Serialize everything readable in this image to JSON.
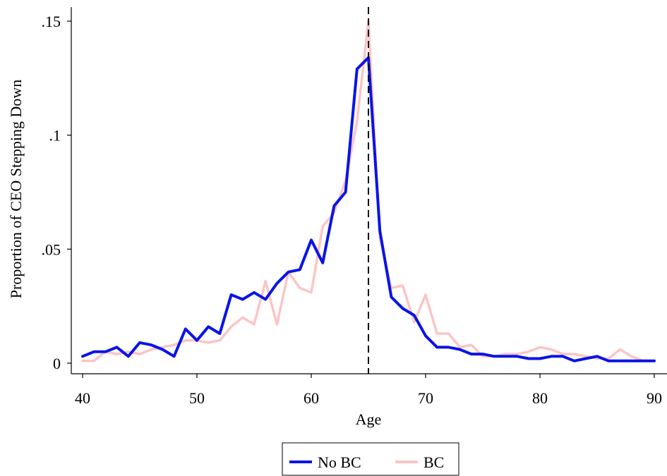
{
  "chart_data": {
    "type": "line",
    "xlabel": "Age",
    "ylabel": "Proportion of CEO Stepping Down",
    "xlim": [
      40,
      90
    ],
    "ylim": [
      0,
      0.15
    ],
    "xticks": [
      {
        "value": 40,
        "label": "40"
      },
      {
        "value": 50,
        "label": "50"
      },
      {
        "value": 60,
        "label": "60"
      },
      {
        "value": 70,
        "label": "70"
      },
      {
        "value": 80,
        "label": "80"
      },
      {
        "value": 90,
        "label": "90"
      }
    ],
    "yticks": [
      {
        "value": 0,
        "label": "0"
      },
      {
        "value": 0.05,
        "label": ".05"
      },
      {
        "value": 0.1,
        "label": ".1"
      },
      {
        "value": 0.15,
        "label": ".15"
      }
    ],
    "reference_line": {
      "x": 65,
      "style": "dashed",
      "color": "#000000"
    },
    "grid": false,
    "legend_position": "bottom-center",
    "x": [
      40,
      41,
      42,
      43,
      44,
      45,
      46,
      47,
      48,
      49,
      50,
      51,
      52,
      53,
      54,
      55,
      56,
      57,
      58,
      59,
      60,
      61,
      62,
      63,
      64,
      65,
      66,
      67,
      68,
      69,
      70,
      71,
      72,
      73,
      74,
      75,
      76,
      77,
      78,
      79,
      80,
      81,
      82,
      83,
      84,
      85,
      86,
      87,
      88,
      89,
      90
    ],
    "series": [
      {
        "name": "No BC",
        "color": "#0a14e6",
        "values": [
          0.003,
          0.005,
          0.005,
          0.007,
          0.003,
          0.009,
          0.008,
          0.006,
          0.003,
          0.015,
          0.01,
          0.016,
          0.013,
          0.03,
          0.028,
          0.031,
          0.028,
          0.035,
          0.04,
          0.041,
          0.054,
          0.044,
          0.069,
          0.075,
          0.129,
          0.134,
          0.058,
          0.029,
          0.024,
          0.021,
          0.012,
          0.007,
          0.007,
          0.006,
          0.004,
          0.004,
          0.003,
          0.003,
          0.003,
          0.002,
          0.002,
          0.003,
          0.003,
          0.001,
          0.002,
          0.003,
          0.001,
          0.001,
          0.001,
          0.001,
          0.001
        ]
      },
      {
        "name": "BC",
        "color": "#fbc5c5",
        "values": [
          0.001,
          0.001,
          0.005,
          0.004,
          0.005,
          0.004,
          0.006,
          0.007,
          0.008,
          0.01,
          0.01,
          0.009,
          0.01,
          0.016,
          0.02,
          0.017,
          0.036,
          0.017,
          0.04,
          0.033,
          0.031,
          0.06,
          0.066,
          0.08,
          0.106,
          0.15,
          0.055,
          0.033,
          0.034,
          0.018,
          0.03,
          0.013,
          0.013,
          0.007,
          0.008,
          0.003,
          0.003,
          0.004,
          0.004,
          0.005,
          0.007,
          0.006,
          0.004,
          0.004,
          0.003,
          0.002,
          0.002,
          0.006,
          0.003,
          0.001,
          0.001
        ]
      }
    ]
  }
}
